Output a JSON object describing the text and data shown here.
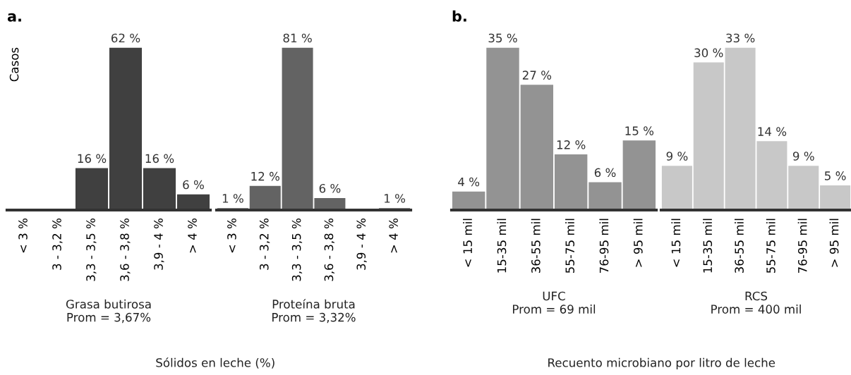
{
  "chart_data": [
    {
      "type": "bar",
      "categories": [
        "< 3 %",
        "3 - 3,2 %",
        "3,3 - 3,5 %",
        "3,6 - 3,8 %",
        "3,9 - 4 %",
        "> 4 %"
      ],
      "values": [
        0,
        0,
        16,
        62,
        16,
        6
      ],
      "value_labels": [
        null,
        null,
        "16 %",
        "62 %",
        "16 %",
        "6 %"
      ],
      "color": "#404040",
      "xlabel": "Grasa butirosa\nProm = 3,67%",
      "ylabel": "Casos",
      "tick_labels": "x",
      "annotations": [
        "a.",
        "Sólidos en leche (%)"
      ]
    },
    {
      "type": "bar",
      "categories": [
        "< 3 %",
        "3 - 3,2 %",
        "3,3 - 3,5 %",
        "3,6 - 3,8 %",
        "3,9 - 4 %",
        "> 4 %"
      ],
      "values": [
        1,
        12,
        81,
        6,
        0,
        1
      ],
      "value_labels": [
        "1 %",
        "12 %",
        "81 %",
        "6 %",
        null,
        "1 %"
      ],
      "color": "#636363",
      "xlabel": "Proteína bruta\nProm = 3,32%",
      "tick_labels": "x"
    },
    {
      "type": "bar",
      "categories": [
        "< 15 mil",
        "15-35 mil",
        "36-55 mil",
        "55-75 mil",
        "76-95 mil",
        "> 95 mil"
      ],
      "values": [
        4,
        35,
        27,
        12,
        6,
        15
      ],
      "value_labels": [
        "4 %",
        "35 %",
        "27 %",
        "12 %",
        "6 %",
        "15 %"
      ],
      "color": "#939393",
      "xlabel": "UFC\nProm = 69 mil",
      "tick_labels": "x",
      "annotations": [
        "b.",
        "Recuento microbiano por litro de leche"
      ]
    },
    {
      "type": "bar",
      "categories": [
        "< 15 mil",
        "15-35 mil",
        "36-55 mil",
        "55-75 mil",
        "76-95 mil",
        "> 95 mil"
      ],
      "values": [
        9,
        30,
        33,
        14,
        9,
        5
      ],
      "value_labels": [
        "9 %",
        "30 %",
        "33 %",
        "14 %",
        "9 %",
        "5 %"
      ],
      "color": "#c8c8c8",
      "xlabel": "RCS\nProm = 400 mil",
      "tick_labels": "x"
    }
  ]
}
